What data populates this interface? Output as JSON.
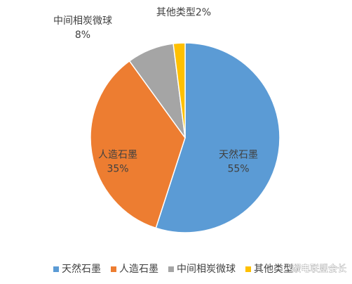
{
  "chart_data": {
    "type": "pie",
    "categories": [
      "天然石墨",
      "人造石墨",
      "中间相炭微球",
      "其他类型"
    ],
    "values": [
      55,
      35,
      8,
      2
    ],
    "value_labels": [
      "55%",
      "35%",
      "8%",
      "2%"
    ],
    "colors": [
      "#5b9bd5",
      "#ed7d31",
      "#a5a5a5",
      "#ffc000"
    ],
    "legend": "bottom"
  },
  "watermark": "碳电联盟会长"
}
